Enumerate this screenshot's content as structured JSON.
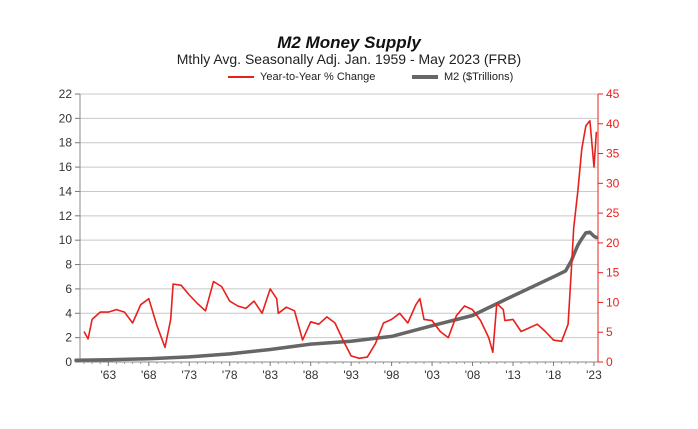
{
  "chart_data": {
    "type": "line",
    "title": "M2 Money Supply",
    "subtitle": "Mthly Avg. Seasonally Adj. Jan. 1959 - May 2023  (FRB)",
    "legend_position": "top",
    "grid": true,
    "x_ticks": [
      "'63",
      "'68",
      "'73",
      "'78",
      "'83",
      "'88",
      "'93",
      "'98",
      "'03",
      "'08",
      "'13",
      "'18",
      "'23"
    ],
    "x_tick_years": [
      1963,
      1968,
      1973,
      1978,
      1983,
      1988,
      1993,
      1998,
      2003,
      2008,
      2013,
      2018,
      2023
    ],
    "xlim": [
      1959.5,
      2023.5
    ],
    "left_axis": {
      "ylim": [
        0,
        22
      ],
      "ticks": [
        0,
        2,
        4,
        6,
        8,
        10,
        12,
        14,
        16,
        18,
        20,
        22
      ]
    },
    "right_axis": {
      "ylim": [
        0,
        45
      ],
      "ticks": [
        0,
        5,
        10,
        15,
        20,
        25,
        30,
        35,
        40,
        45
      ]
    },
    "series": [
      {
        "name": "Year-to-Year % Change",
        "color": "#e8201c",
        "axis": "left",
        "x": [
          1960,
          1960.5,
          1961,
          1962,
          1963,
          1964,
          1965,
          1966,
          1967,
          1968,
          1969,
          1970,
          1970.7,
          1971,
          1972,
          1973,
          1974,
          1975,
          1976,
          1977,
          1978,
          1979,
          1980,
          1981,
          1982,
          1983,
          1983.8,
          1984,
          1985,
          1986,
          1987,
          1988,
          1989,
          1990,
          1991,
          1992,
          1993,
          1994,
          1995,
          1996,
          1997,
          1998,
          1999,
          2000,
          2001,
          2001.5,
          2002,
          2003,
          2004,
          2005,
          2006,
          2007,
          2008,
          2009,
          2010,
          2010.5,
          2011,
          2011.8,
          2012,
          2013,
          2014,
          2015,
          2016,
          2017,
          2018,
          2019,
          2019.8,
          2020.2,
          2020.5,
          2021,
          2021.5,
          2022,
          2022.5,
          2023,
          2023.3
        ],
        "y": [
          2.5,
          1.9,
          3.5,
          4.1,
          4.1,
          4.3,
          4.1,
          3.2,
          4.7,
          5.2,
          3.0,
          1.2,
          3.5,
          6.4,
          6.3,
          5.5,
          4.8,
          4.2,
          6.6,
          6.2,
          5.0,
          4.6,
          4.4,
          5.0,
          4.0,
          6.0,
          5.2,
          4.0,
          4.5,
          4.2,
          1.8,
          3.3,
          3.1,
          3.7,
          3.2,
          1.8,
          0.5,
          0.3,
          0.4,
          1.5,
          3.2,
          3.5,
          4.0,
          3.2,
          4.7,
          5.2,
          3.5,
          3.4,
          2.5,
          2.0,
          3.8,
          4.6,
          4.3,
          3.4,
          2.0,
          0.8,
          4.8,
          4.3,
          3.4,
          3.5,
          2.5,
          2.8,
          3.1,
          2.5,
          1.8,
          1.7,
          3.1,
          7.5,
          11.0,
          14.0,
          17.5,
          19.4,
          19.8,
          16.0,
          18.9
        ]
      },
      {
        "name": "M2 ($Trillions)",
        "color": "#666666",
        "axis": "right",
        "x": [
          1959,
          1963,
          1968,
          1973,
          1978,
          1983,
          1988,
          1993,
          1998,
          2003,
          2008,
          2013,
          2018,
          2019.5,
          2020.2,
          2020.6,
          2021,
          2021.5,
          2022,
          2022.5,
          2023,
          2023.3
        ],
        "y": [
          0.29,
          0.37,
          0.55,
          0.86,
          1.36,
          2.1,
          3.0,
          3.5,
          4.3,
          6.1,
          7.8,
          11.1,
          14.3,
          15.3,
          17.0,
          18.3,
          19.6,
          20.7,
          21.7,
          21.8,
          21.1,
          20.9
        ]
      }
    ]
  }
}
